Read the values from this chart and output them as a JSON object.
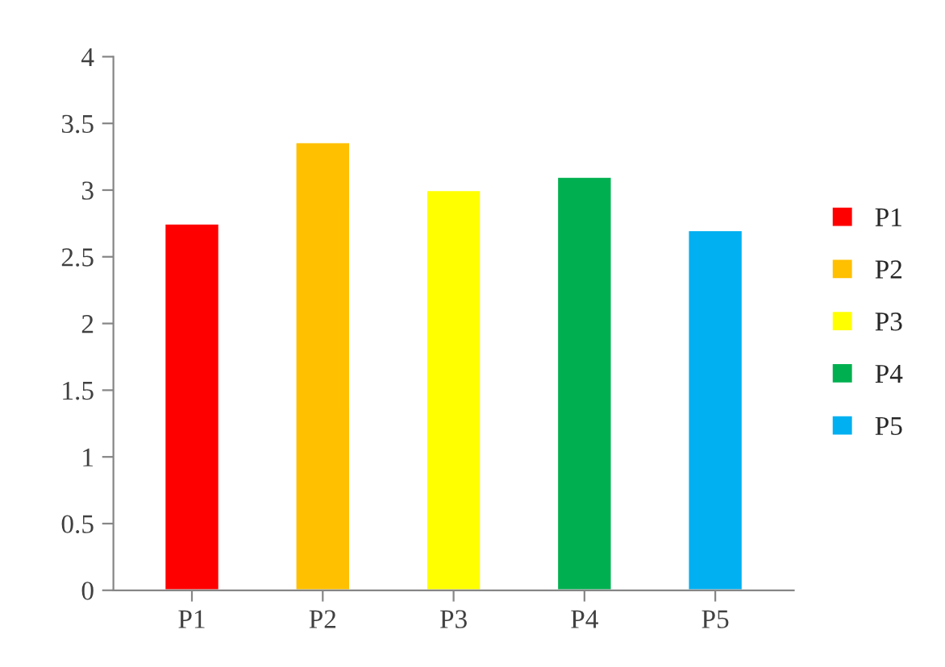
{
  "chart_data": {
    "type": "bar",
    "categories": [
      "P1",
      "P2",
      "P3",
      "P4",
      "P5"
    ],
    "series": [
      {
        "name": "P1",
        "color": "#ff0000",
        "values": [
          2.75,
          null,
          null,
          null,
          null
        ]
      },
      {
        "name": "P2",
        "color": "#ffc000",
        "values": [
          null,
          3.36,
          null,
          null,
          null
        ]
      },
      {
        "name": "P3",
        "color": "#ffff00",
        "values": [
          null,
          null,
          3.0,
          null,
          null
        ]
      },
      {
        "name": "P4",
        "color": "#00b050",
        "values": [
          null,
          null,
          null,
          3.1,
          null
        ]
      },
      {
        "name": "P5",
        "color": "#00b0f0",
        "values": [
          null,
          null,
          null,
          null,
          2.7
        ]
      }
    ],
    "ylim": [
      0,
      4
    ],
    "yticks": [
      0,
      0.5,
      1,
      1.5,
      2,
      2.5,
      3,
      3.5,
      4
    ],
    "legend": "right"
  }
}
